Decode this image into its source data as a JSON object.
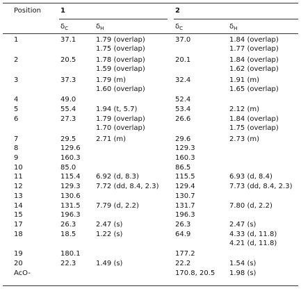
{
  "table": {
    "header": {
      "position": "Position",
      "compounds": [
        "1",
        "2"
      ]
    },
    "subheader": [
      {
        "main": "δ",
        "sub": "C"
      },
      {
        "main": "δ",
        "sub": "H"
      },
      {
        "main": "δ",
        "sub": "C"
      },
      {
        "main": "δ",
        "sub": "H"
      }
    ],
    "rows": [
      {
        "position": "1",
        "c1": "37.1",
        "h1": [
          "1.79 (overlap)",
          "1.75 (overlap)"
        ],
        "c2": "37.0",
        "h2": [
          "1.84 (overlap)",
          "1.77 (overlap)"
        ]
      },
      {
        "position": "2",
        "c1": "20.5",
        "h1": [
          "1.78 (overlap)",
          "1.59 (overlap)"
        ],
        "c2": "20.1",
        "h2": [
          "1.84 (overlap)",
          "1.62 (overlap)"
        ]
      },
      {
        "position": "3",
        "c1": "37.3",
        "h1": [
          "1.79 (m)",
          "1.60 (overlap)"
        ],
        "c2": "32.4",
        "h2": [
          "1.91 (m)",
          "1.65 (overlap)"
        ]
      },
      {
        "position": "4",
        "c1": "49.0",
        "h1": [],
        "c2": "52.4",
        "h2": []
      },
      {
        "position": "5",
        "c1": "55.4",
        "h1": [
          "1.94 (t, 5.7)"
        ],
        "c2": "53.4",
        "h2": [
          "2.12 (m)"
        ]
      },
      {
        "position": "6",
        "c1": "27.3",
        "h1": [
          "1.79 (overlap)",
          "1.70 (overlap)"
        ],
        "c2": "26.6",
        "h2": [
          "1.84 (overlap)",
          "1.75 (overlap)"
        ]
      },
      {
        "position": "7",
        "c1": "29.5",
        "h1": [
          "2.71 (m)"
        ],
        "c2": "29.6",
        "h2": [
          "2.73 (m)"
        ]
      },
      {
        "position": "8",
        "c1": "129.6",
        "h1": [],
        "c2": "129.3",
        "h2": []
      },
      {
        "position": "9",
        "c1": "160.3",
        "h1": [],
        "c2": "160.3",
        "h2": []
      },
      {
        "position": "10",
        "c1": "85.0",
        "h1": [],
        "c2": "86.5",
        "h2": []
      },
      {
        "position": "11",
        "c1": "115.4",
        "h1": [
          "6.92 (d, 8.3)"
        ],
        "c2": "115.5",
        "h2": [
          "6.93 (d, 8.4)"
        ]
      },
      {
        "position": "12",
        "c1": "129.3",
        "h1": [
          "7.72 (dd, 8.4, 2.3)"
        ],
        "c2": "129.4",
        "h2": [
          "7.73 (dd, 8.4, 2.3)"
        ]
      },
      {
        "position": "13",
        "c1": "130.6",
        "h1": [],
        "c2": "130.7",
        "h2": []
      },
      {
        "position": "14",
        "c1": "131.5",
        "h1": [
          "7.79 (d, 2.2)"
        ],
        "c2": "131.7",
        "h2": [
          "7.80 (d, 2.2)"
        ]
      },
      {
        "position": "15",
        "c1": "196.3",
        "h1": [],
        "c2": "196.3",
        "h2": []
      },
      {
        "position": "17",
        "c1": "26.3",
        "h1": [
          "2.47 (s)"
        ],
        "c2": "26.3",
        "h2": [
          "2.47 (s)"
        ]
      },
      {
        "position": "18",
        "c1": "18.5",
        "h1": [
          "1.22 (s)"
        ],
        "c2": "64.9",
        "h2": [
          "4.33 (d, 11.8)",
          "4.21 (d, 11.8)"
        ]
      },
      {
        "position": "19",
        "c1": "180.1",
        "h1": [],
        "c2": "177.2",
        "h2": []
      },
      {
        "position": "20",
        "c1": "22.3",
        "h1": [
          "1.49 (s)"
        ],
        "c2": "22.2",
        "h2": [
          "1.54 (s)"
        ]
      },
      {
        "position": "AcO-",
        "c1": null,
        "h1": [],
        "c2": "170.8, 20.5",
        "h2": [
          "1.98 (s)"
        ]
      }
    ]
  }
}
